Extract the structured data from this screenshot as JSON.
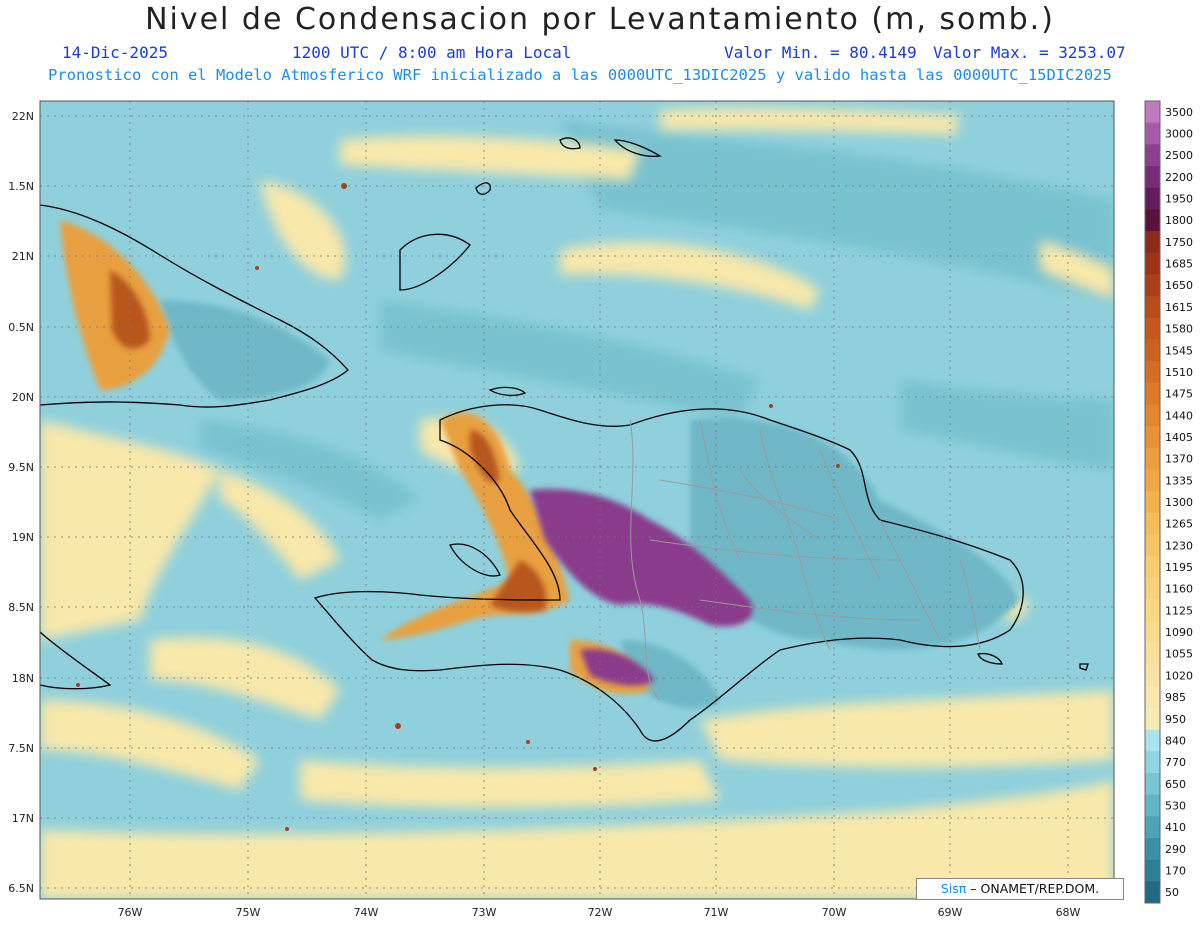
{
  "header": {
    "title": "Nivel de Condensacion por Levantamiento (m, somb.)",
    "date": "14-Dic-2025",
    "time": "1200 UTC / 8:00 am Hora Local",
    "min_label": "Valor Min. = 80.4149",
    "max_label": "Valor Max. = 3253.07",
    "description": "Pronostico con el Modelo Atmosferico WRF inicializado a las 0000UTC_13DIC2025 y valido hasta las  0000UTC_15DIC2025"
  },
  "axes": {
    "lat_labels": [
      "22N",
      "1.5N",
      "21N",
      "0.5N",
      "20N",
      "9.5N",
      "19N",
      "8.5N",
      "18N",
      "7.5N",
      "17N",
      "6.5N"
    ],
    "lon_labels": [
      "76W",
      "75W",
      "74W",
      "73W",
      "72W",
      "71W",
      "70W",
      "69W",
      "68W"
    ]
  },
  "colorbar": {
    "levels": [
      "3500",
      "3000",
      "2500",
      "2200",
      "1950",
      "1800",
      "1750",
      "1685",
      "1650",
      "1615",
      "1580",
      "1545",
      "1510",
      "1475",
      "1440",
      "1405",
      "1370",
      "1335",
      "1300",
      "1265",
      "1230",
      "1195",
      "1160",
      "1125",
      "1090",
      "1055",
      "1020",
      "985",
      "950",
      "840",
      "770",
      "650",
      "530",
      "410",
      "290",
      "170",
      "50"
    ],
    "colors": [
      "#c07ac0",
      "#a85aa8",
      "#8e3e8e",
      "#782c76",
      "#641c5e",
      "#5a1238",
      "#8c2a1c",
      "#9c3418",
      "#aa4018",
      "#b84c1a",
      "#c4561e",
      "#cc6222",
      "#d46e26",
      "#dc7a2a",
      "#e28630",
      "#e89236",
      "#ec9e3e",
      "#f0a846",
      "#f2b250",
      "#f4bc5a",
      "#f6c464",
      "#f8cc70",
      "#f8d27a",
      "#f8d884",
      "#f8dc8e",
      "#f8e098",
      "#f8e4a2",
      "#f8e8ac",
      "#f8ecb6",
      "#a8e4ee",
      "#90d6e2",
      "#78c6d4",
      "#62b4c6",
      "#4ea2b6",
      "#3c90a6",
      "#2e7e96",
      "#226a84"
    ]
  },
  "credit": {
    "logo": "Sisπ",
    "text": "– ONAMET/REP.DOM."
  },
  "colors": {
    "ocean": "#8fd0dc",
    "lowland": "#6fbccc",
    "yellow": "#f8e8aa",
    "orange": "#e0882c",
    "purple": "#8a3a8c",
    "coast": "#000000",
    "province": "#9a9a9a"
  }
}
